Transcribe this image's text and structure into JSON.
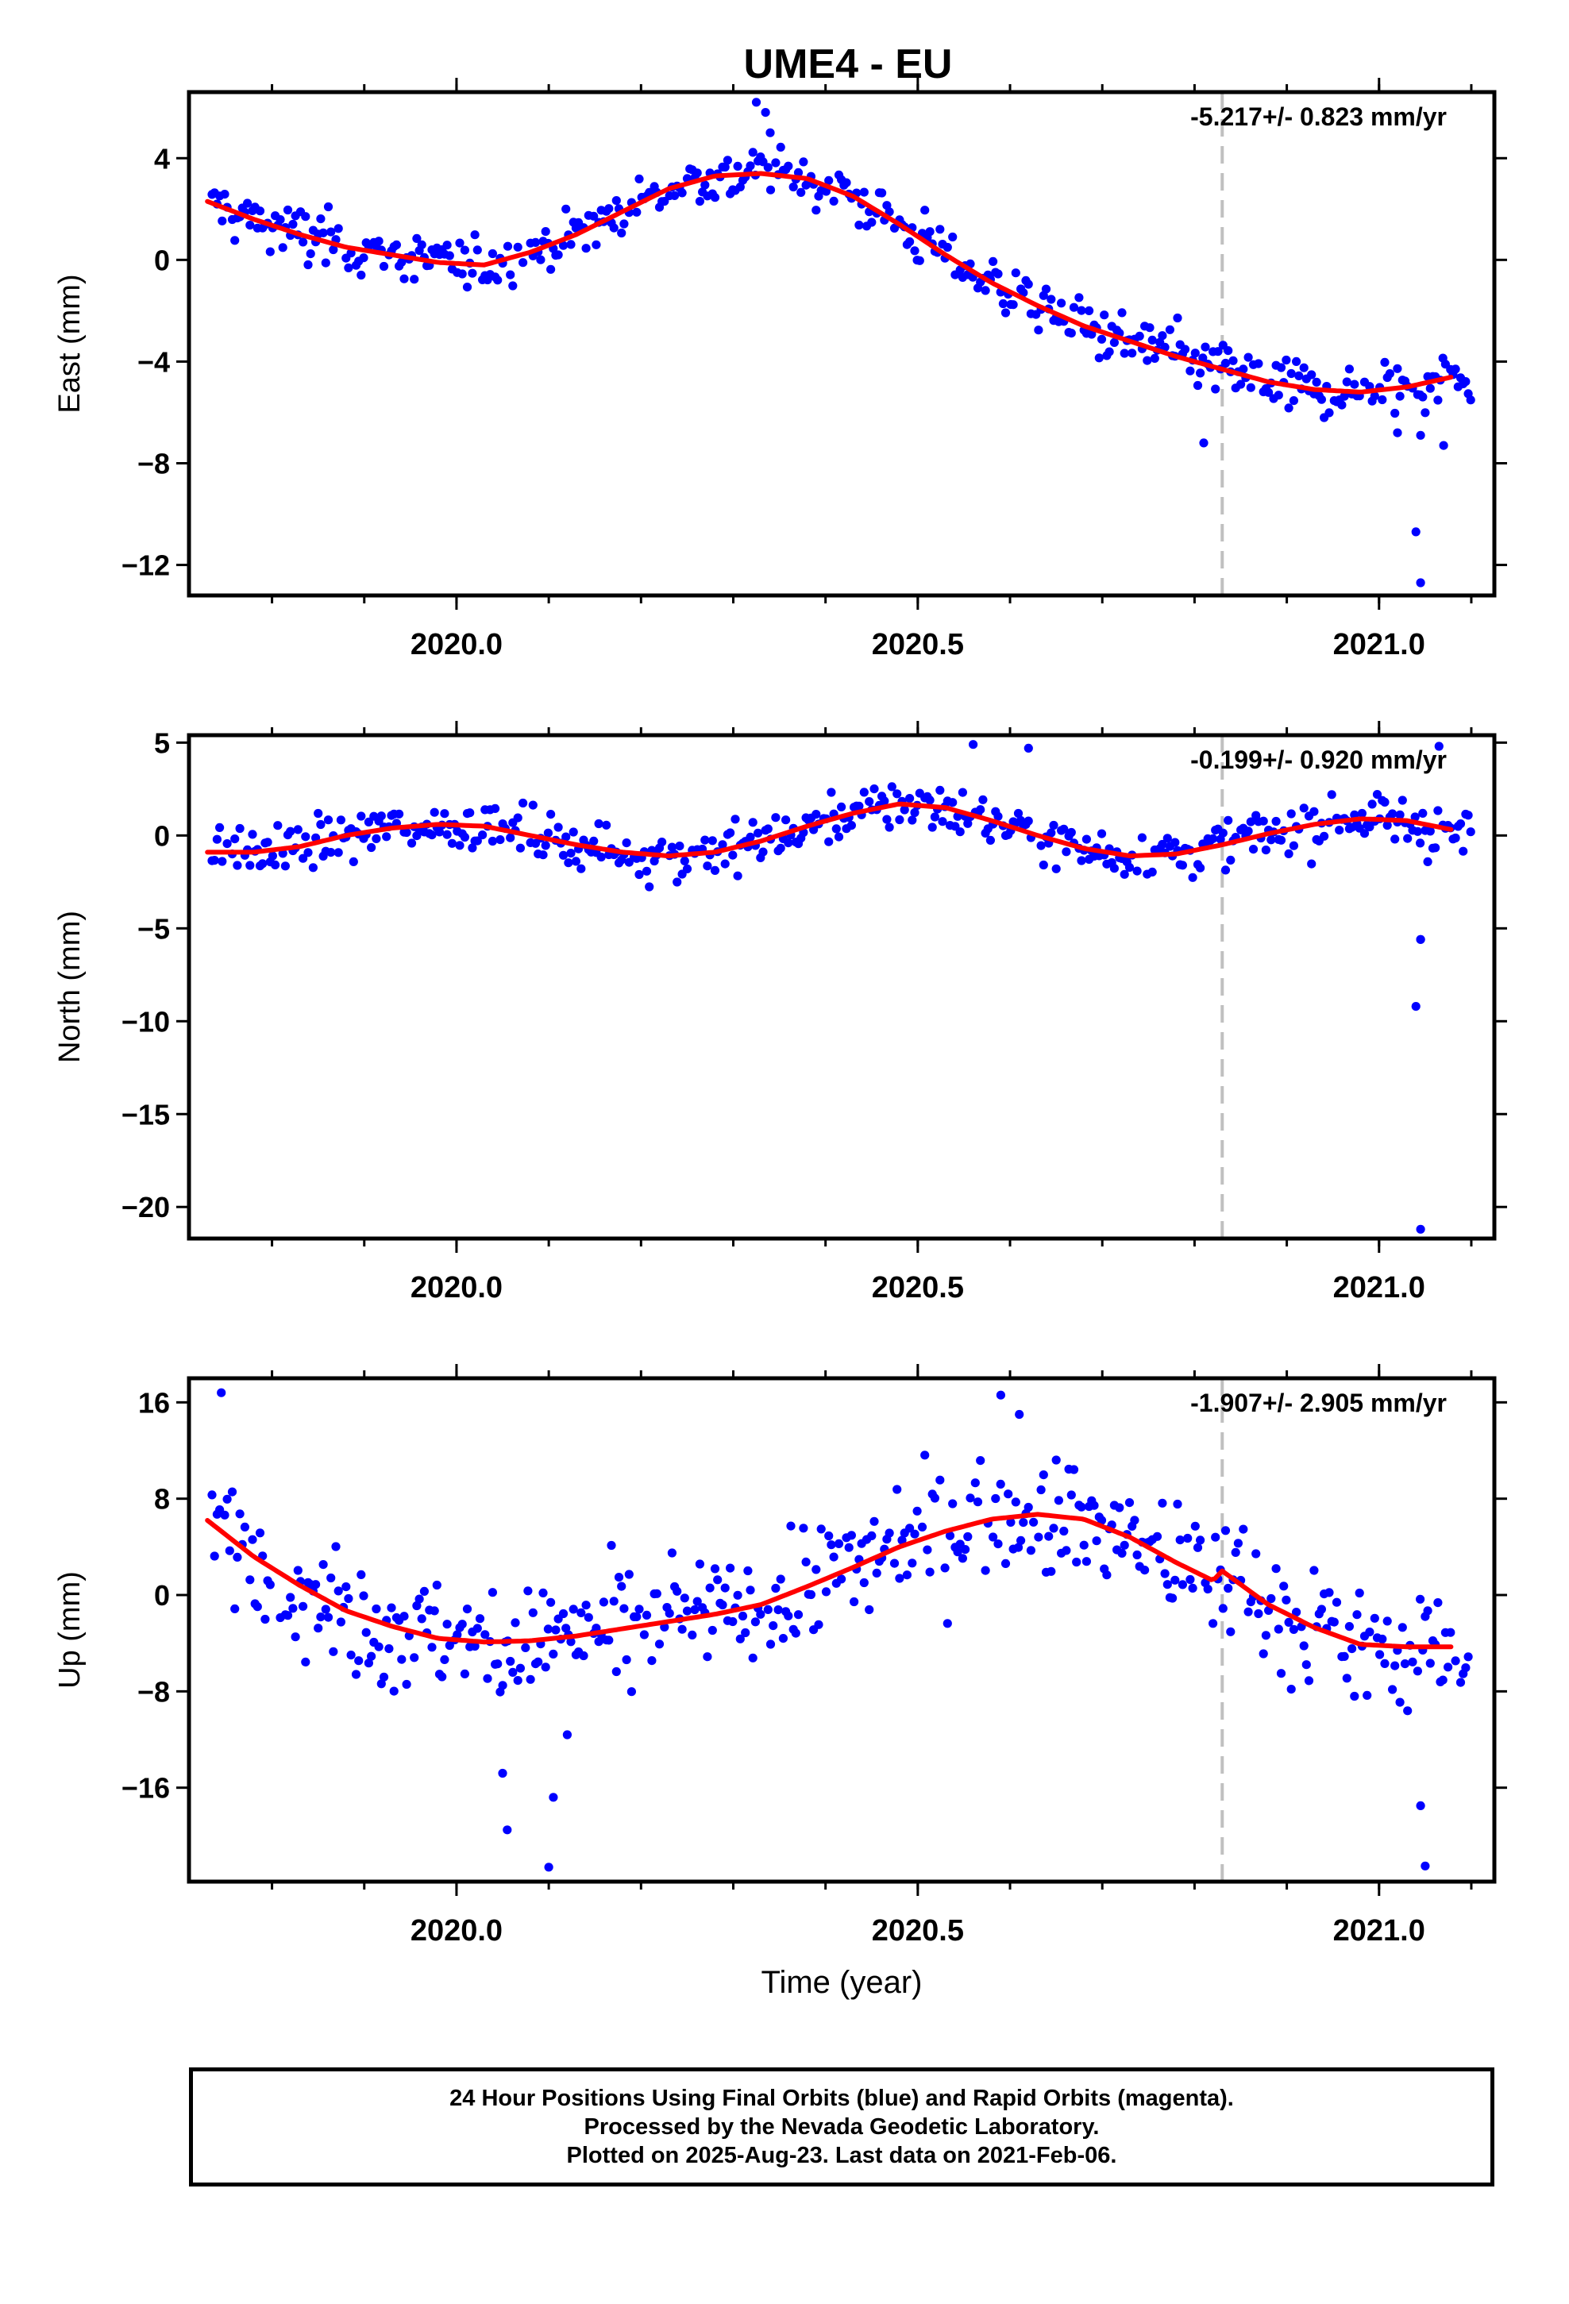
{
  "figure": {
    "title": "UME4 - EU",
    "xlabel": "Time (year)"
  },
  "colors": {
    "data_points": "#0000ff",
    "model_fit": "#ff0000",
    "equipment_change_line": "#c0c0c0",
    "axes": "#000000"
  },
  "chart_data": [
    {
      "type": "scatter",
      "ylabel": "East (mm)",
      "rate_text": "-5.217+/- 0.823 mm/yr",
      "xlim": [
        2019.71,
        2021.125
      ],
      "ylim": [
        -13.2,
        6.6
      ],
      "xticks": [
        2020.0,
        2020.5,
        2021.0
      ],
      "xtick_labels": [
        "2020.0",
        "2020.5",
        "2021.0"
      ],
      "yticks": [
        4,
        0,
        -4,
        -8,
        -12
      ],
      "ytick_labels": [
        "4",
        "0",
        "−4",
        "−8",
        "−12"
      ],
      "series": [
        {
          "x": [
            2019.73,
            2019.78,
            2019.83,
            2019.88,
            2019.93,
            2019.98,
            2020.03,
            2020.08,
            2020.13,
            2020.18,
            2020.23,
            2020.28,
            2020.33,
            2020.38,
            2020.43,
            2020.48,
            2020.53,
            2020.58,
            2020.63,
            2020.68,
            2020.73,
            2020.78,
            2020.83,
            2020.88,
            2020.93,
            2020.98,
            2021.03,
            2021.08
          ],
          "y": [
            2.3,
            1.6,
            1.0,
            0.5,
            0.2,
            -0.1,
            -0.2,
            0.3,
            1.0,
            1.9,
            2.8,
            3.3,
            3.4,
            3.2,
            2.5,
            1.4,
            0.2,
            -0.9,
            -1.8,
            -2.6,
            -3.2,
            -3.8,
            -4.3,
            -4.8,
            -5.1,
            -5.2,
            -5.0,
            -4.6
          ]
        },
        {
          "x": [
            2020.325,
            2020.335,
            2020.34,
            2021.02,
            2021.04,
            2021.045,
            2021.07,
            2020.81,
            2021.045
          ],
          "y": [
            6.2,
            5.8,
            5.0,
            -6.8,
            -10.7,
            -12.7,
            -7.3,
            -7.2,
            -6.9
          ]
        }
      ]
    },
    {
      "type": "scatter",
      "ylabel": "North (mm)",
      "rate_text": "-0.199+/- 0.920 mm/yr",
      "xlim": [
        2019.71,
        2021.125
      ],
      "ylim": [
        -21.7,
        5.4
      ],
      "xticks": [
        2020.0,
        2020.5,
        2021.0
      ],
      "xtick_labels": [
        "2020.0",
        "2020.5",
        "2021.0"
      ],
      "yticks": [
        5,
        0,
        -5,
        -10,
        -15,
        -20
      ],
      "ytick_labels": [
        "5",
        "0",
        "−5",
        "−10",
        "−15",
        "−20"
      ],
      "series": [
        {
          "x": [
            2019.73,
            2019.78,
            2019.83,
            2019.88,
            2019.93,
            2019.98,
            2020.03,
            2020.08,
            2020.13,
            2020.18,
            2020.23,
            2020.28,
            2020.33,
            2020.38,
            2020.43,
            2020.48,
            2020.53,
            2020.58,
            2020.63,
            2020.68,
            2020.73,
            2020.78,
            2020.83,
            2020.88,
            2020.93,
            2020.98,
            2021.03,
            2021.08
          ],
          "y": [
            -0.9,
            -0.9,
            -0.6,
            0.0,
            0.4,
            0.6,
            0.5,
            0.0,
            -0.5,
            -0.9,
            -1.1,
            -0.9,
            -0.3,
            0.5,
            1.2,
            1.7,
            1.5,
            0.8,
            0.0,
            -0.7,
            -1.1,
            -1.0,
            -0.5,
            0.1,
            0.6,
            0.9,
            0.8,
            0.3
          ]
        },
        {
          "x": [
            2021.04,
            2021.045,
            2021.045,
            2021.045,
            2020.56,
            2020.62,
            2021.065
          ],
          "y": [
            -9.2,
            -5.6,
            -21.2,
            -5.6,
            4.9,
            4.7,
            4.8
          ]
        }
      ]
    },
    {
      "type": "scatter",
      "ylabel": "Up (mm)",
      "rate_text": "-1.907+/- 2.905 mm/yr",
      "xlim": [
        2019.71,
        2021.125
      ],
      "ylim": [
        -23.8,
        18.0
      ],
      "xticks": [
        2020.0,
        2020.5,
        2021.0
      ],
      "xtick_labels": [
        "2020.0",
        "2020.5",
        "2021.0"
      ],
      "yticks": [
        16,
        8,
        0,
        -8,
        -16
      ],
      "ytick_labels": [
        "16",
        "8",
        "0",
        "−8",
        "−16"
      ],
      "series": [
        {
          "x": [
            2019.73,
            2019.78,
            2019.83,
            2019.88,
            2019.93,
            2019.98,
            2020.03,
            2020.08,
            2020.13,
            2020.18,
            2020.23,
            2020.28,
            2020.33,
            2020.38,
            2020.43,
            2020.48,
            2020.53,
            2020.58,
            2020.63,
            2020.68,
            2020.73,
            2020.78,
            2020.82,
            2020.83,
            2020.88,
            2020.93,
            2020.98,
            2021.03,
            2021.08
          ],
          "y": [
            6.2,
            3.2,
            0.8,
            -1.3,
            -2.6,
            -3.6,
            -3.9,
            -3.8,
            -3.4,
            -2.8,
            -2.2,
            -1.6,
            -0.8,
            0.7,
            2.3,
            4.0,
            5.3,
            6.3,
            6.7,
            6.3,
            4.8,
            2.7,
            1.2,
            2.0,
            -0.8,
            -2.7,
            -4.1,
            -4.3,
            -4.3
          ]
        },
        {
          "x": [
            2019.745,
            2020.05,
            2020.055,
            2020.1,
            2020.105,
            2021.045,
            2021.05,
            2020.59,
            2020.61,
            2020.12
          ],
          "y": [
            16.8,
            -14.8,
            -19.5,
            -22.6,
            -16.8,
            -17.5,
            -22.5,
            16.6,
            15.0,
            -11.6
          ]
        }
      ]
    }
  ],
  "equipment_change_year": 2020.83,
  "footer": {
    "lines": [
      "24 Hour Positions Using Final Orbits (blue) and Rapid Orbits (magenta).",
      "Processed by the Nevada Geodetic Laboratory.",
      "Plotted on 2025-Aug-23. Last data on 2021-Feb-06."
    ]
  }
}
